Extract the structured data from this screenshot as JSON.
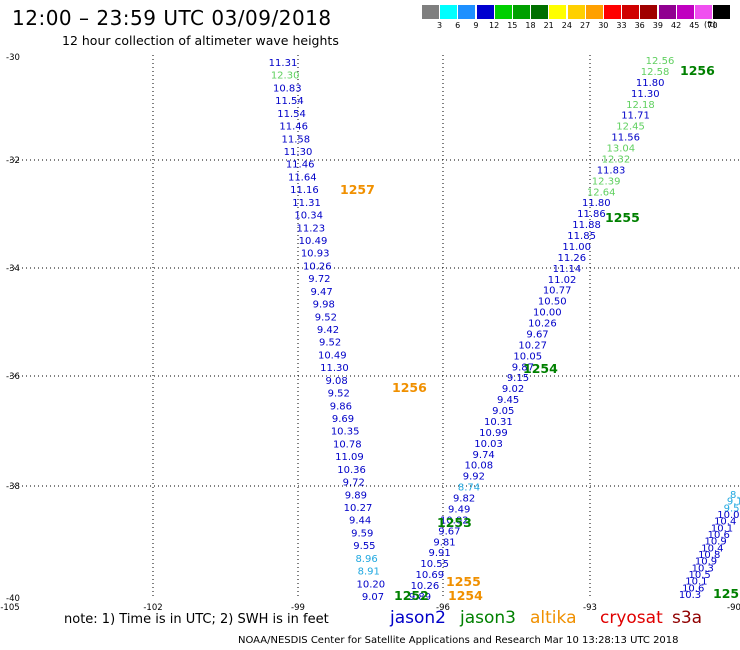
{
  "header": {
    "title": "12:00 – 23:59 UTC 03/09/2018",
    "subtitle": "12 hour collection of altimeter wave heights"
  },
  "colorbar": {
    "unit": "(ft)",
    "boxes": [
      {
        "color": "#7f7f7f",
        "label": "3"
      },
      {
        "color": "#00ffff",
        "label": "6"
      },
      {
        "color": "#1e90ff",
        "label": "9"
      },
      {
        "color": "#0000d0",
        "label": "12"
      },
      {
        "color": "#00d000",
        "label": "15"
      },
      {
        "color": "#00a000",
        "label": "18"
      },
      {
        "color": "#007000",
        "label": "21"
      },
      {
        "color": "#ffff00",
        "label": "24"
      },
      {
        "color": "#ffd000",
        "label": "27"
      },
      {
        "color": "#ffa000",
        "label": "30"
      },
      {
        "color": "#ff0000",
        "label": "33"
      },
      {
        "color": "#d00000",
        "label": "36"
      },
      {
        "color": "#a00000",
        "label": "39"
      },
      {
        "color": "#900090",
        "label": "42"
      },
      {
        "color": "#c000c0",
        "label": "45"
      },
      {
        "color": "#f050f0",
        "label": "70"
      },
      {
        "color": "#000000",
        "label": ""
      }
    ]
  },
  "axes": {
    "lat_labels": [
      "-30",
      "-32",
      "-34",
      "-36",
      "-38",
      "-40"
    ],
    "lon_labels": [
      "-105",
      "-102",
      "-99",
      "-96",
      "-93",
      "-90"
    ]
  },
  "tracks": {
    "west": [
      {
        "v": "11.31",
        "c": "#0000c8"
      },
      {
        "v": "12.30",
        "c": "#60d060"
      },
      {
        "v": "10.83",
        "c": "#0000c8"
      },
      {
        "v": "11.54",
        "c": "#0000c8"
      },
      {
        "v": "11.54",
        "c": "#0000c8"
      },
      {
        "v": "11.46",
        "c": "#0000c8"
      },
      {
        "v": "11.58",
        "c": "#0000c8"
      },
      {
        "v": "11.30",
        "c": "#0000c8"
      },
      {
        "v": "11.46",
        "c": "#0000c8"
      },
      {
        "v": "11.64",
        "c": "#0000c8"
      },
      {
        "v": "11.16",
        "c": "#0000c8"
      },
      {
        "v": "11.31",
        "c": "#0000c8"
      },
      {
        "v": "10.34",
        "c": "#0000c8"
      },
      {
        "v": "11.23",
        "c": "#0000c8"
      },
      {
        "v": "10.49",
        "c": "#0000c8"
      },
      {
        "v": "10.93",
        "c": "#0000c8"
      },
      {
        "v": "10.26",
        "c": "#0000c8"
      },
      {
        "v": "9.72",
        "c": "#0000c8"
      },
      {
        "v": "9.47",
        "c": "#0000c8"
      },
      {
        "v": "9.98",
        "c": "#0000c8"
      },
      {
        "v": "9.52",
        "c": "#0000c8"
      },
      {
        "v": "9.42",
        "c": "#0000c8"
      },
      {
        "v": "9.52",
        "c": "#0000c8"
      },
      {
        "v": "10.49",
        "c": "#0000c8"
      },
      {
        "v": "11.30",
        "c": "#0000c8"
      },
      {
        "v": "9.08",
        "c": "#0000c8"
      },
      {
        "v": "9.52",
        "c": "#0000c8"
      },
      {
        "v": "9.86",
        "c": "#0000c8"
      },
      {
        "v": "9.69",
        "c": "#0000c8"
      },
      {
        "v": "10.35",
        "c": "#0000c8"
      },
      {
        "v": "10.78",
        "c": "#0000c8"
      },
      {
        "v": "11.09",
        "c": "#0000c8"
      },
      {
        "v": "10.36",
        "c": "#0000c8"
      },
      {
        "v": "9.72",
        "c": "#0000c8"
      },
      {
        "v": "9.89",
        "c": "#0000c8"
      },
      {
        "v": "10.27",
        "c": "#0000c8"
      },
      {
        "v": "9.44",
        "c": "#0000c8"
      },
      {
        "v": "9.59",
        "c": "#0000c8"
      },
      {
        "v": "9.55",
        "c": "#0000c8"
      },
      {
        "v": "8.96",
        "c": "#20a8e0"
      },
      {
        "v": "8.91",
        "c": "#20a8e0"
      },
      {
        "v": "10.20",
        "c": "#0000c8"
      },
      {
        "v": "9.07",
        "c": "#0000c8"
      }
    ],
    "center": [
      {
        "v": "12.56",
        "c": "#60d060"
      },
      {
        "v": "12.58",
        "c": "#60d060"
      },
      {
        "v": "11.80",
        "c": "#0000c8"
      },
      {
        "v": "11.30",
        "c": "#0000c8"
      },
      {
        "v": "12.18",
        "c": "#60d060"
      },
      {
        "v": "11.71",
        "c": "#0000c8"
      },
      {
        "v": "12.45",
        "c": "#60d060"
      },
      {
        "v": "11.56",
        "c": "#0000c8"
      },
      {
        "v": "13.04",
        "c": "#60d060"
      },
      {
        "v": "12.32",
        "c": "#60d060"
      },
      {
        "v": "11.83",
        "c": "#0000c8"
      },
      {
        "v": "12.39",
        "c": "#60d060"
      },
      {
        "v": "12.64",
        "c": "#60d060"
      },
      {
        "v": "11.80",
        "c": "#0000c8"
      },
      {
        "v": "11.86",
        "c": "#0000c8"
      },
      {
        "v": "11.88",
        "c": "#0000c8"
      },
      {
        "v": "11.85",
        "c": "#0000c8"
      },
      {
        "v": "11.00",
        "c": "#0000c8"
      },
      {
        "v": "11.26",
        "c": "#0000c8"
      },
      {
        "v": "11.14",
        "c": "#0000c8"
      },
      {
        "v": "11.02",
        "c": "#0000c8"
      },
      {
        "v": "10.77",
        "c": "#0000c8"
      },
      {
        "v": "10.50",
        "c": "#0000c8"
      },
      {
        "v": "10.00",
        "c": "#0000c8"
      },
      {
        "v": "10.26",
        "c": "#0000c8"
      },
      {
        "v": "9.67",
        "c": "#0000c8"
      },
      {
        "v": "10.27",
        "c": "#0000c8"
      },
      {
        "v": "10.05",
        "c": "#0000c8"
      },
      {
        "v": "9.87",
        "c": "#0000c8"
      },
      {
        "v": "9.15",
        "c": "#0000c8"
      },
      {
        "v": "9.02",
        "c": "#0000c8"
      },
      {
        "v": "9.45",
        "c": "#0000c8"
      },
      {
        "v": "9.05",
        "c": "#0000c8"
      },
      {
        "v": "10.31",
        "c": "#0000c8"
      },
      {
        "v": "10.99",
        "c": "#0000c8"
      },
      {
        "v": "10.03",
        "c": "#0000c8"
      },
      {
        "v": "9.74",
        "c": "#0000c8"
      },
      {
        "v": "10.08",
        "c": "#0000c8"
      },
      {
        "v": "9.92",
        "c": "#0000c8"
      },
      {
        "v": "8.74",
        "c": "#20a8e0"
      },
      {
        "v": "9.82",
        "c": "#0000c8"
      },
      {
        "v": "9.49",
        "c": "#0000c8"
      },
      {
        "v": "10.02",
        "c": "#0000c8"
      },
      {
        "v": "9.67",
        "c": "#0000c8"
      },
      {
        "v": "9.81",
        "c": "#0000c8"
      },
      {
        "v": "9.91",
        "c": "#0000c8"
      },
      {
        "v": "10.55",
        "c": "#0000c8"
      },
      {
        "v": "10.69",
        "c": "#0000c8"
      },
      {
        "v": "10.26",
        "c": "#0000c8"
      },
      {
        "v": "9.89",
        "c": "#0000c8"
      }
    ],
    "east": [
      {
        "v": "8.9",
        "c": "#20a8e0"
      },
      {
        "v": "9.1",
        "c": "#20a8e0"
      },
      {
        "v": "9.5",
        "c": "#20a8e0"
      },
      {
        "v": "10.0",
        "c": "#0000c8"
      },
      {
        "v": "10.4",
        "c": "#0000c8"
      },
      {
        "v": "10.1",
        "c": "#0000c8"
      },
      {
        "v": "10.6",
        "c": "#0000c8"
      },
      {
        "v": "10.9",
        "c": "#0000c8"
      },
      {
        "v": "10.4",
        "c": "#0000c8"
      },
      {
        "v": "10.8",
        "c": "#0000c8"
      },
      {
        "v": "10.9",
        "c": "#0000c8"
      },
      {
        "v": "10.3",
        "c": "#0000c8"
      },
      {
        "v": "10.5",
        "c": "#0000c8"
      },
      {
        "v": "10.1",
        "c": "#0000c8"
      },
      {
        "v": "10.6",
        "c": "#0000c8"
      },
      {
        "v": "10.3",
        "c": "#0000c8"
      }
    ],
    "pass_labels": [
      {
        "t": "1257",
        "c": "#f09000"
      },
      {
        "t": "1256",
        "c": "#f09000"
      },
      {
        "t": "1255",
        "c": "#f09000"
      },
      {
        "t": "1254",
        "c": "#f09000"
      },
      {
        "t": "1256",
        "c": "#008000"
      },
      {
        "t": "1255",
        "c": "#008000"
      },
      {
        "t": "1254",
        "c": "#008000"
      },
      {
        "t": "1253",
        "c": "#008000"
      },
      {
        "t": "1252",
        "c": "#008000"
      },
      {
        "t": "125",
        "c": "#008000"
      }
    ]
  },
  "footer": {
    "note": "note:  1) Time is in UTC;  2) SWH is in feet",
    "legend": [
      {
        "label": "jason2",
        "color": "#0000c8"
      },
      {
        "label": "jason3",
        "color": "#008000"
      },
      {
        "label": "altika",
        "color": "#f09000"
      },
      {
        "label": "cryosat",
        "color": "#e00000"
      },
      {
        "label": "s3a",
        "color": "#900000"
      }
    ],
    "credit": "NOAA/NESDIS Center for Satellite Applications and Research    Mar 10 13:28:13 UTC 2018"
  }
}
